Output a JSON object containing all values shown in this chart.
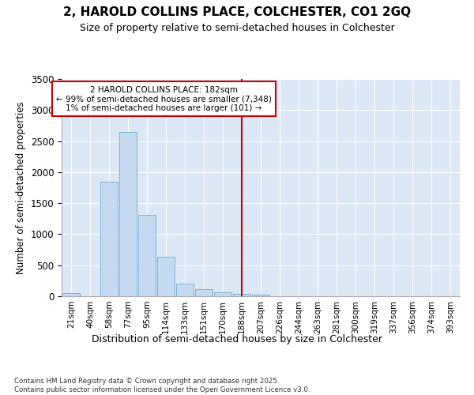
{
  "title1": "2, HAROLD COLLINS PLACE, COLCHESTER, CO1 2GQ",
  "title2": "Size of property relative to semi-detached houses in Colchester",
  "xlabel": "Distribution of semi-detached houses by size in Colchester",
  "ylabel": "Number of semi-detached properties",
  "footnote": "Contains HM Land Registry data © Crown copyright and database right 2025.\nContains public sector information licensed under the Open Government Licence v3.0.",
  "bar_labels": [
    "21sqm",
    "40sqm",
    "58sqm",
    "77sqm",
    "95sqm",
    "114sqm",
    "133sqm",
    "151sqm",
    "170sqm",
    "188sqm",
    "207sqm",
    "226sqm",
    "244sqm",
    "263sqm",
    "281sqm",
    "300sqm",
    "319sqm",
    "337sqm",
    "356sqm",
    "374sqm",
    "393sqm"
  ],
  "bar_values": [
    55,
    0,
    1850,
    2650,
    1310,
    640,
    200,
    110,
    60,
    40,
    20,
    5,
    0,
    0,
    0,
    0,
    0,
    0,
    0,
    0,
    0
  ],
  "bar_color": "#c5d9f0",
  "bar_edge_color": "#6baed6",
  "vline_x": 9,
  "vline_color": "#cc0000",
  "annotation_title": "2 HAROLD COLLINS PLACE: 182sqm",
  "annotation_line1": "← 99% of semi-detached houses are smaller (7,348)",
  "annotation_line2": "1% of semi-detached houses are larger (101) →",
  "annotation_box_edgecolor": "#cc0000",
  "ylim": [
    0,
    3500
  ],
  "yticks": [
    0,
    500,
    1000,
    1500,
    2000,
    2500,
    3000,
    3500
  ],
  "fig_bg_color": "#ffffff",
  "plot_bg_color": "#dce8f5"
}
